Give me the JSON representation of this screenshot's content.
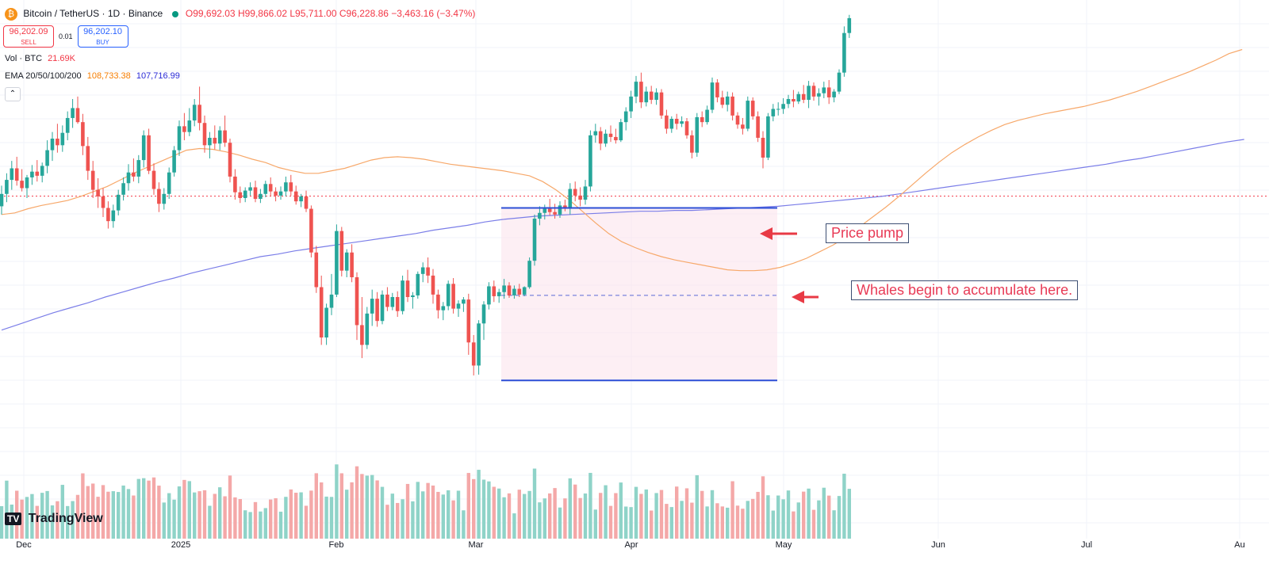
{
  "legend": {
    "symbol_glyph": "₿",
    "symbol": "Bitcoin / TetherUS · 1D · Binance",
    "open": "O99,692.03",
    "high": "H99,866.02",
    "low": "L95,711.00",
    "close": "C96,228.86",
    "change": "−3,463.16 (−3.47%)"
  },
  "trade": {
    "sell_price": "96,202.09",
    "sell_label": "SELL",
    "spread": "0.01",
    "buy_price": "96,202.10",
    "buy_label": "BUY"
  },
  "volume_legend": {
    "label": "Vol · BTC",
    "value": "21.69K"
  },
  "ema_legend": {
    "label": "EMA 20/50/100/200",
    "value1": "108,733.38",
    "value2": "107,716.99"
  },
  "collapse_glyph": "⌃",
  "annotations": {
    "price_pump": "Price pump",
    "whales": "Whales begin to accumulate here."
  },
  "branding": {
    "mark": "TV",
    "name": "TradingView"
  },
  "chart_data": {
    "type": "candlestick",
    "x_ticks": [
      "Dec",
      "2025",
      "Feb",
      "Mar",
      "Apr",
      "May",
      "Jun",
      "Jul",
      "Au"
    ],
    "candles_ohlc": [
      [
        95000,
        97500,
        94000,
        96500
      ],
      [
        96500,
        99000,
        95500,
        98200
      ],
      [
        98200,
        100500,
        97000,
        99600
      ],
      [
        99600,
        101000,
        97500,
        98100
      ],
      [
        98100,
        99500,
        96800,
        97200
      ],
      [
        97200,
        98800,
        96000,
        98500
      ],
      [
        98500,
        100000,
        97600,
        99200
      ],
      [
        99200,
        100600,
        98000,
        98700
      ],
      [
        98700,
        100300,
        97900,
        99900
      ],
      [
        99900,
        103000,
        99000,
        101800
      ],
      [
        101800,
        104000,
        100500,
        103200
      ],
      [
        103200,
        105000,
        101500,
        102400
      ],
      [
        102400,
        104800,
        101600,
        103900
      ],
      [
        103900,
        106500,
        103000,
        105700
      ],
      [
        105700,
        108000,
        104500,
        106900
      ],
      [
        106900,
        108300,
        105000,
        105200
      ],
      [
        105200,
        106200,
        101200,
        102300
      ],
      [
        102300,
        103400,
        98200,
        99300
      ],
      [
        99300,
        100500,
        96000,
        97000
      ],
      [
        97000,
        98400,
        94800,
        96200
      ],
      [
        96200,
        97200,
        93700,
        94800
      ],
      [
        94800,
        95600,
        92300,
        93200
      ],
      [
        93200,
        95200,
        92400,
        94500
      ],
      [
        94500,
        97000,
        93900,
        96400
      ],
      [
        96400,
        98500,
        95700,
        97800
      ],
      [
        97800,
        100100,
        96900,
        99100
      ],
      [
        99100,
        100800,
        98000,
        98600
      ],
      [
        98600,
        101200,
        97800,
        100600
      ],
      [
        100600,
        104200,
        99700,
        103600
      ],
      [
        103600,
        104400,
        98900,
        99300
      ],
      [
        99300,
        100200,
        96400,
        97100
      ],
      [
        97100,
        97900,
        94300,
        95300
      ],
      [
        95300,
        97200,
        94600,
        96500
      ],
      [
        96500,
        99700,
        95900,
        99100
      ],
      [
        99100,
        102300,
        98600,
        101800
      ],
      [
        101800,
        105400,
        101100,
        104700
      ],
      [
        104700,
        106300,
        103000,
        104000
      ],
      [
        104000,
        106900,
        103500,
        105400
      ],
      [
        105400,
        108000,
        104700,
        107300
      ],
      [
        107300,
        109500,
        104200,
        105100
      ],
      [
        105100,
        106000,
        101500,
        102400
      ],
      [
        102400,
        104000,
        100800,
        103300
      ],
      [
        103300,
        104800,
        101900,
        102600
      ],
      [
        102600,
        104700,
        101800,
        104200
      ],
      [
        104200,
        106000,
        102200,
        102700
      ],
      [
        102700,
        103200,
        97900,
        98600
      ],
      [
        98600,
        99500,
        95800,
        96700
      ],
      [
        96700,
        97400,
        95400,
        96000
      ],
      [
        96000,
        97300,
        95500,
        96900
      ],
      [
        96900,
        97900,
        96300,
        97300
      ],
      [
        97300,
        98100,
        95500,
        95900
      ],
      [
        95900,
        97100,
        95400,
        96500
      ],
      [
        96500,
        98100,
        96100,
        97700
      ],
      [
        97700,
        98500,
        96200,
        96800
      ],
      [
        96800,
        97300,
        95600,
        96300
      ],
      [
        96300,
        97400,
        95800,
        96800
      ],
      [
        96800,
        98600,
        96200,
        97900
      ],
      [
        97900,
        98800,
        96300,
        96800
      ],
      [
        96800,
        97500,
        95200,
        95600
      ],
      [
        95600,
        96500,
        94900,
        96200
      ],
      [
        96200,
        96900,
        94300,
        94700
      ],
      [
        94700,
        95100,
        88800,
        89400
      ],
      [
        89400,
        90200,
        84500,
        85200
      ],
      [
        85200,
        86600,
        78200,
        79100
      ],
      [
        79100,
        83200,
        78200,
        82700
      ],
      [
        82700,
        86800,
        81800,
        84300
      ],
      [
        84300,
        92800,
        84000,
        92000
      ],
      [
        92000,
        92500,
        86500,
        87200
      ],
      [
        87200,
        89800,
        86400,
        89400
      ],
      [
        89400,
        90400,
        85800,
        86400
      ],
      [
        86400,
        87000,
        78800,
        80600
      ],
      [
        80600,
        84000,
        76600,
        78200
      ],
      [
        78200,
        82800,
        77700,
        82000
      ],
      [
        82000,
        84900,
        80500,
        83800
      ],
      [
        83800,
        84600,
        80400,
        81100
      ],
      [
        81100,
        84800,
        80700,
        84300
      ],
      [
        84300,
        85200,
        82300,
        82800
      ],
      [
        82800,
        84500,
        82400,
        84000
      ],
      [
        84000,
        84700,
        81600,
        82300
      ],
      [
        82300,
        86600,
        81900,
        86000
      ],
      [
        86000,
        87300,
        83400,
        84000
      ],
      [
        84000,
        84600,
        82600,
        84200
      ],
      [
        84200,
        87100,
        83800,
        86800
      ],
      [
        86800,
        88200,
        85800,
        87600
      ],
      [
        87600,
        88800,
        85700,
        86600
      ],
      [
        86600,
        87400,
        83200,
        84300
      ],
      [
        84300,
        84900,
        81400,
        82400
      ],
      [
        82400,
        83400,
        81200,
        82900
      ],
      [
        82900,
        86000,
        82400,
        85600
      ],
      [
        85600,
        86300,
        82000,
        82600
      ],
      [
        82600,
        83600,
        81600,
        83200
      ],
      [
        83200,
        84000,
        82200,
        83700
      ],
      [
        83700,
        84400,
        77000,
        78500
      ],
      [
        78500,
        79400,
        74500,
        75700
      ],
      [
        75700,
        81200,
        74600,
        80800
      ],
      [
        80800,
        83500,
        78800,
        83100
      ],
      [
        83100,
        85800,
        82500,
        85300
      ],
      [
        85300,
        86000,
        83400,
        84100
      ],
      [
        84100,
        85000,
        83300,
        84600
      ],
      [
        84600,
        86200,
        83800,
        85400
      ],
      [
        85400,
        85800,
        83900,
        84200
      ],
      [
        84200,
        85400,
        83800,
        85000
      ],
      [
        85000,
        85600,
        84000,
        84300
      ],
      [
        84300,
        85300,
        84100,
        85200
      ],
      [
        85200,
        88800,
        85000,
        88400
      ],
      [
        88400,
        94000,
        87800,
        93500
      ],
      [
        93500,
        95000,
        92700,
        94200
      ],
      [
        94200,
        95200,
        93400,
        94700
      ],
      [
        94700,
        95900,
        93900,
        94300
      ],
      [
        94300,
        95300,
        93500,
        94000
      ],
      [
        94000,
        95600,
        93600,
        95100
      ],
      [
        95100,
        95800,
        94400,
        94700
      ],
      [
        94700,
        97800,
        94000,
        97100
      ],
      [
        97100,
        98000,
        95600,
        96300
      ],
      [
        96300,
        97300,
        95000,
        95800
      ],
      [
        95800,
        98200,
        95200,
        97400
      ],
      [
        97400,
        104200,
        96800,
        103600
      ],
      [
        103600,
        105000,
        102700,
        104100
      ],
      [
        104100,
        104600,
        101800,
        102600
      ],
      [
        102600,
        104300,
        102200,
        103800
      ],
      [
        103800,
        104800,
        102800,
        103400
      ],
      [
        103400,
        104400,
        102600,
        103000
      ],
      [
        103000,
        105600,
        102800,
        105200
      ],
      [
        105200,
        107000,
        104200,
        106500
      ],
      [
        106500,
        109000,
        105700,
        108300
      ],
      [
        108300,
        110800,
        107500,
        110100
      ],
      [
        110100,
        111200,
        106900,
        107600
      ],
      [
        107600,
        109500,
        107100,
        108900
      ],
      [
        108900,
        109600,
        107400,
        107900
      ],
      [
        107900,
        109300,
        107300,
        108800
      ],
      [
        108800,
        109200,
        105600,
        106000
      ],
      [
        106000,
        106700,
        103800,
        104400
      ],
      [
        104400,
        105900,
        103900,
        105600
      ],
      [
        105600,
        106200,
        104300,
        105000
      ],
      [
        105000,
        105900,
        104600,
        105300
      ],
      [
        105300,
        105700,
        103200,
        103600
      ],
      [
        103600,
        104200,
        100800,
        101500
      ],
      [
        101500,
        106300,
        101000,
        105800
      ],
      [
        105800,
        106500,
        104600,
        105200
      ],
      [
        105200,
        107200,
        104900,
        106700
      ],
      [
        106700,
        110600,
        106300,
        110000
      ],
      [
        110000,
        110400,
        107600,
        108200
      ],
      [
        108200,
        109000,
        106900,
        107300
      ],
      [
        107300,
        108900,
        106500,
        108300
      ],
      [
        108300,
        108800,
        105400,
        106000
      ],
      [
        106000,
        106400,
        104400,
        104900
      ],
      [
        104900,
        105700,
        103700,
        104400
      ],
      [
        104400,
        108300,
        104100,
        107800
      ],
      [
        107800,
        108200,
        105500,
        105900
      ],
      [
        105900,
        106500,
        102800,
        103300
      ],
      [
        103300,
        104100,
        99600,
        100900
      ],
      [
        100900,
        106300,
        100600,
        105900
      ],
      [
        105900,
        107400,
        105300,
        106800
      ],
      [
        106800,
        107600,
        106000,
        106800
      ],
      [
        106800,
        108100,
        106200,
        107400
      ],
      [
        107400,
        108500,
        106900,
        108000
      ],
      [
        108000,
        109100,
        107000,
        107700
      ],
      [
        107700,
        108900,
        107400,
        108600
      ],
      [
        108600,
        109700,
        107500,
        107900
      ],
      [
        107900,
        110200,
        106900,
        109600
      ],
      [
        109600,
        110000,
        107800,
        108300
      ],
      [
        108300,
        109300,
        107200,
        108700
      ],
      [
        108700,
        110100,
        108100,
        109400
      ],
      [
        109400,
        110300,
        107400,
        108200
      ],
      [
        108200,
        109200,
        107600,
        108900
      ],
      [
        108900,
        111600,
        108600,
        111200
      ],
      [
        111200,
        116800,
        110700,
        116000
      ],
      [
        116000,
        118200,
        115400,
        117800
      ]
    ],
    "ema_20": [
      94000,
      94200,
      94700,
      95100,
      95400,
      95700,
      96200,
      96800,
      97400,
      98200,
      99000,
      99700,
      100400,
      101100,
      101800,
      102000,
      101900,
      101600,
      101200,
      100700,
      100300,
      99700,
      99300,
      99000,
      99000,
      99300,
      99600,
      100100,
      100600,
      100900,
      101000,
      100900,
      100700,
      100400,
      100100,
      99900,
      99700,
      99500,
      99300,
      99000,
      98700,
      98000,
      97000,
      95800,
      94400,
      93000,
      91700,
      90700,
      90000,
      89400,
      88900,
      88500,
      88200,
      87900,
      87600,
      87300,
      87200,
      87200,
      87300,
      87600,
      88100,
      88700,
      89500,
      90300,
      91300,
      92500,
      93700,
      94900,
      96200,
      97600,
      99000,
      100300,
      101500,
      102500,
      103400,
      104200,
      104900,
      105400,
      105800,
      106200,
      106500,
      106800,
      107100,
      107500,
      107900,
      108400,
      108900,
      109500,
      110100,
      110700,
      111300,
      112000,
      112700,
      113500,
      114000
    ],
    "ema_200": [
      80000,
      80700,
      81400,
      82100,
      82700,
      83300,
      84000,
      84600,
      85200,
      85800,
      86300,
      86900,
      87400,
      87900,
      88400,
      88900,
      89200,
      89600,
      89900,
      90200,
      90500,
      90800,
      91100,
      91400,
      91700,
      92100,
      92400,
      92700,
      93100,
      93400,
      93600,
      93800,
      93900,
      94000,
      94100,
      94200,
      94300,
      94400,
      94400,
      94500,
      94500,
      94600,
      94700,
      94800,
      94900,
      95000,
      95200,
      95400,
      95600,
      95800,
      96000,
      96200,
      96500,
      96800,
      97100,
      97400,
      97700,
      98000,
      98300,
      98600,
      98900,
      99200,
      99500,
      99800,
      100100,
      100500,
      100800,
      101200,
      101600,
      102000,
      102400,
      102800,
      103100
    ],
    "ema_20_label": "EMA 20",
    "ema_200_label": "EMA 200",
    "current_price": 96228.86,
    "accumulation_range": {
      "top": 94800,
      "bottom": 73900,
      "mid": 84200
    },
    "volume_note": "relative daily volume bars, red = down day, green = up day",
    "grid": true
  }
}
